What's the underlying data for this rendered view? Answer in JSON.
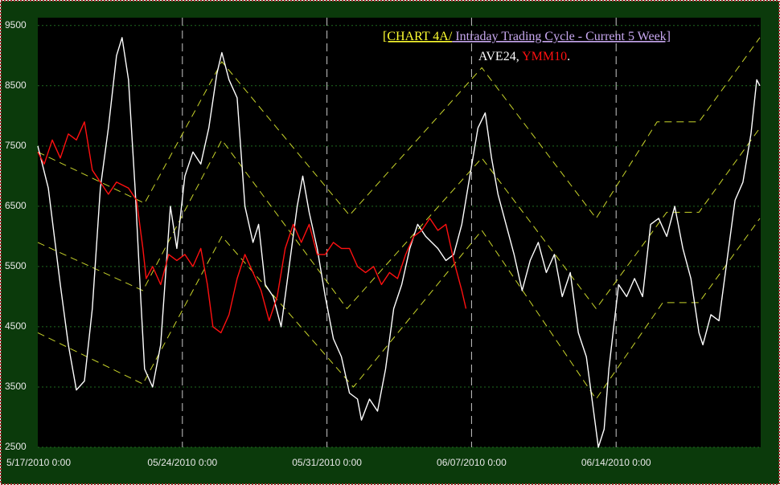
{
  "chart_data": {
    "type": "line",
    "title": "[CHART 4A/",
    "subtitle": " Intraday Trading Cycle - Current 5 Week]",
    "legend_separator": ", ",
    "legend_end": ".",
    "xlim": [
      0,
      35
    ],
    "xticks": [
      {
        "value": 0,
        "label": "5/17/2010 0:00"
      },
      {
        "value": 7,
        "label": "05/24/2010 0:00"
      },
      {
        "value": 14,
        "label": "05/31/2010 0:00"
      },
      {
        "value": 21,
        "label": "06/07/2010 0:00"
      },
      {
        "value": 28,
        "label": "06/14/2010 0:00"
      }
    ],
    "ylim": [
      2500,
      9630
    ],
    "yticks": [
      2500,
      3500,
      4500,
      5500,
      6500,
      7500,
      8500,
      9500
    ],
    "grid": true,
    "series": [
      {
        "name": "AVE24",
        "color": "#ffffff",
        "x": [
          0,
          0.51,
          1.09,
          1.48,
          1.87,
          2.26,
          2.64,
          3.03,
          3.42,
          3.81,
          4.08,
          4.39,
          4.71,
          4.98,
          5.17,
          5.56,
          5.95,
          6.42,
          6.73,
          7.12,
          7.51,
          7.89,
          8.28,
          8.67,
          8.91,
          9.26,
          9.65,
          10.03,
          10.42,
          10.69,
          11.01,
          11.4,
          11.78,
          12.17,
          12.56,
          12.83,
          13.14,
          13.53,
          13.92,
          14.31,
          14.7,
          15.09,
          15.48,
          15.67,
          16.06,
          16.45,
          16.84,
          17.23,
          17.62,
          18.01,
          18.39,
          18.78,
          19.37,
          19.76,
          20.14,
          20.53,
          20.92,
          21.31,
          21.66,
          21.97,
          22.28,
          22.67,
          23.06,
          23.45,
          23.84,
          24.23,
          24.62,
          25.01,
          25.39,
          25.78,
          26.17,
          26.56,
          26.87,
          27.14,
          27.42,
          27.65,
          28.12,
          28.51,
          28.89,
          29.28,
          29.67,
          30.06,
          30.45,
          30.84,
          31.23,
          31.62,
          32.01,
          32.2,
          32.59,
          32.98,
          33.37,
          33.76,
          34.14,
          34.53,
          34.81,
          34.96
        ],
        "values": [
          7500,
          6800,
          5200,
          4200,
          3450,
          3600,
          4800,
          6800,
          7800,
          9000,
          9300,
          8600,
          6800,
          5000,
          3800,
          3500,
          4200,
          6500,
          5800,
          7000,
          7400,
          7200,
          7800,
          8700,
          9050,
          8600,
          8300,
          6500,
          5900,
          6200,
          5200,
          5000,
          4500,
          5500,
          6500,
          7000,
          6400,
          5800,
          5000,
          4300,
          4000,
          3400,
          3300,
          2950,
          3300,
          3100,
          3800,
          4800,
          5200,
          5800,
          6200,
          6000,
          5800,
          5600,
          5700,
          6200,
          7000,
          7800,
          8050,
          7300,
          6700,
          6200,
          5700,
          5100,
          5600,
          5900,
          5400,
          5700,
          5000,
          5400,
          4400,
          4000,
          3200,
          2500,
          2800,
          3800,
          5200,
          5000,
          5300,
          5000,
          6200,
          6300,
          6000,
          6500,
          5800,
          5300,
          4400,
          4200,
          4700,
          4600,
          5600,
          6600,
          6900,
          7700,
          8600,
          8500
        ]
      },
      {
        "name": "YMM10",
        "color": "#ff1010",
        "x": [
          0,
          0.31,
          0.7,
          1.09,
          1.48,
          1.87,
          2.26,
          2.64,
          3.03,
          3.42,
          3.81,
          4.39,
          4.78,
          5.09,
          5.25,
          5.56,
          5.95,
          6.34,
          6.73,
          7.12,
          7.51,
          7.89,
          8.21,
          8.48,
          8.87,
          9.26,
          9.65,
          10.03,
          10.42,
          10.81,
          11.2,
          11.59,
          11.98,
          12.37,
          12.76,
          13.14,
          13.53,
          13.92,
          14.31,
          14.7,
          15.09,
          15.48,
          15.87,
          16.26,
          16.64,
          17.03,
          17.42,
          17.81,
          18.2,
          18.59,
          18.98,
          19.37,
          19.76,
          20.14,
          20.53,
          20.73
        ],
        "values": [
          7400,
          7200,
          7600,
          7300,
          7700,
          7600,
          7900,
          7100,
          6900,
          6700,
          6900,
          6800,
          6600,
          5800,
          5300,
          5500,
          5200,
          5700,
          5600,
          5700,
          5500,
          5800,
          5200,
          4500,
          4400,
          4700,
          5300,
          5700,
          5400,
          5100,
          4600,
          5000,
          5800,
          6200,
          5900,
          6200,
          5700,
          5700,
          5900,
          5800,
          5800,
          5500,
          5400,
          5500,
          5200,
          5400,
          5300,
          5700,
          6000,
          6100,
          6300,
          6100,
          6200,
          5600,
          5100,
          4800
        ]
      },
      {
        "color": "#c8d42a",
        "dashed": true,
        "x": [
          0,
          5.17,
          8.91,
          15.09,
          21.5,
          27.03,
          29.98,
          32.01,
          34.96
        ],
        "values": [
          7400,
          6550,
          8900,
          6350,
          8800,
          6300,
          7900,
          7900,
          9300
        ]
      },
      {
        "color": "#c8d42a",
        "dashed": true,
        "x": [
          0,
          5.09,
          8.91,
          14.97,
          21.5,
          27.03,
          30.45,
          32.01,
          34.96
        ],
        "values": [
          5900,
          5100,
          7600,
          4800,
          7300,
          4800,
          6400,
          6400,
          7800
        ]
      },
      {
        "color": "#c8d42a",
        "dashed": true,
        "x": [
          0,
          5.09,
          8.91,
          15.28,
          21.5,
          27.03,
          30.26,
          32.01,
          34.96
        ],
        "values": [
          4400,
          3550,
          6000,
          3500,
          6100,
          3300,
          4900,
          4900,
          6300
        ]
      }
    ]
  }
}
